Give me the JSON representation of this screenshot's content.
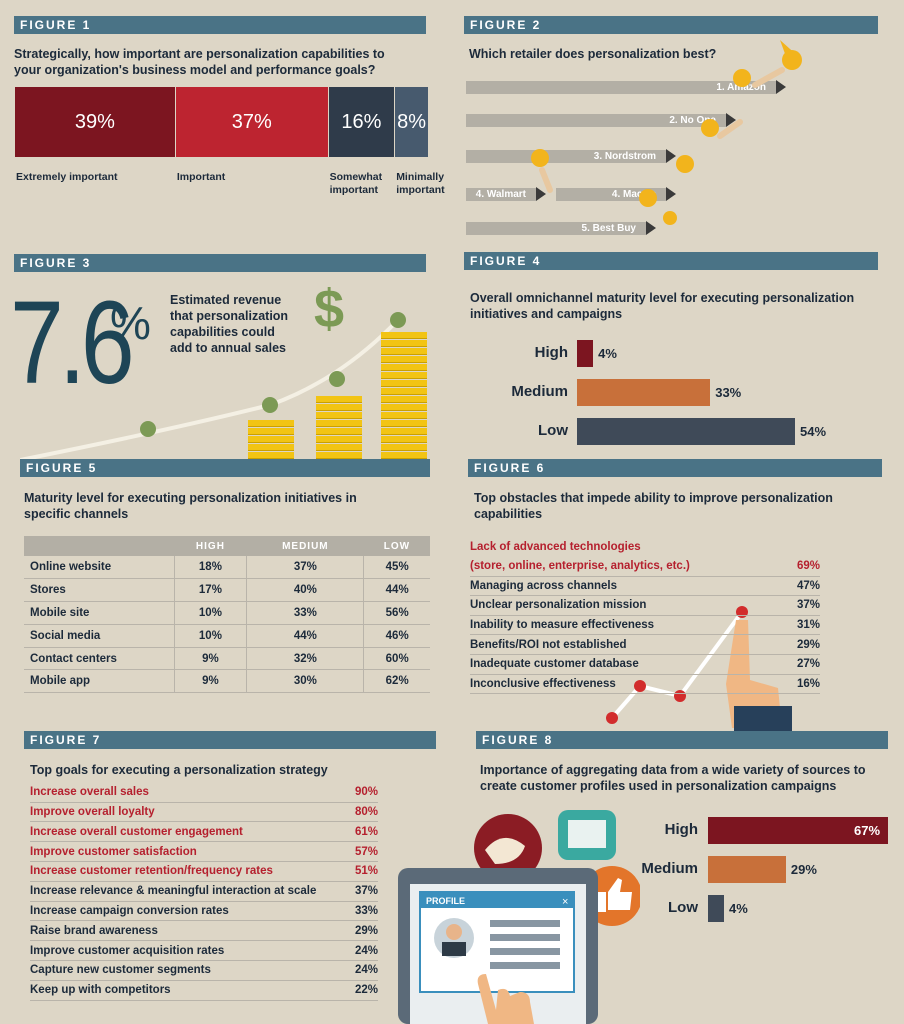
{
  "fig1": {
    "header": "FIGURE 1",
    "question": "Strategically, how important are personalization capabilities to your organization's business model and performance goals?",
    "chart_data": {
      "type": "bar",
      "stacked": true,
      "categories": [
        "Extremely important",
        "Important",
        "Somewhat important",
        "Minimally important"
      ],
      "values": [
        39,
        37,
        16,
        8
      ],
      "value_labels": [
        "39%",
        "37%",
        "16%",
        "8%"
      ],
      "colors": [
        "#7c1520",
        "#bd2430",
        "#2f3b4a",
        "#475a6e"
      ]
    },
    "labels": [
      "Extremely important",
      "Important",
      "Somewhat important",
      "Minimally important"
    ]
  },
  "fig2": {
    "header": "FIGURE 2",
    "question": "Which retailer does personalization best?",
    "ranks": [
      "1. Amazon",
      "2. No One",
      "3. Nordstrom",
      "4. Walmart",
      "4. Macy's",
      "5. Best Buy"
    ]
  },
  "fig3": {
    "header": "FIGURE 3",
    "big_number": "7.6",
    "percent_sign": "%",
    "dollar": "$",
    "caption": "Estimated revenue that personalization capabilities could add to annual sales"
  },
  "fig4": {
    "header": "FIGURE 4",
    "question": "Overall omnichannel maturity level for executing personalization initiatives and  campaigns",
    "chart_data": {
      "type": "bar",
      "orientation": "horizontal",
      "categories": [
        "High",
        "Medium",
        "Low"
      ],
      "values": [
        4,
        33,
        54
      ],
      "value_labels": [
        "4%",
        "33%",
        "54%"
      ],
      "colors": [
        "#7c1520",
        "#c8703a",
        "#3f4a58"
      ]
    }
  },
  "fig5": {
    "header": "FIGURE 5",
    "question": "Maturity level for executing personalization initiatives in specific channels",
    "chart_data": {
      "type": "table",
      "columns": [
        "",
        "HIGH",
        "MEDIUM",
        "LOW"
      ],
      "rows": [
        [
          "Online website",
          "18%",
          "37%",
          "45%"
        ],
        [
          "Stores",
          "17%",
          "40%",
          "44%"
        ],
        [
          "Mobile site",
          "10%",
          "33%",
          "56%"
        ],
        [
          "Social media",
          "10%",
          "44%",
          "46%"
        ],
        [
          "Contact centers",
          "9%",
          "32%",
          "60%"
        ],
        [
          "Mobile app",
          "9%",
          "30%",
          "62%"
        ]
      ]
    }
  },
  "fig6": {
    "header": "FIGURE 6",
    "question": "Top obstacles that impede ability to improve personalization capabilities",
    "first_label_line1": "Lack of advanced technologies",
    "chart_data": {
      "type": "table",
      "rows": [
        {
          "label": "(store, online, enterprise, analytics, etc.)",
          "value": "69%",
          "highlight": true
        },
        {
          "label": "Managing across channels",
          "value": "47%"
        },
        {
          "label": "Unclear personalization mission",
          "value": "37%"
        },
        {
          "label": "Inability to measure effectiveness",
          "value": "31%"
        },
        {
          "label": "Benefits/ROI not established",
          "value": "29%"
        },
        {
          "label": "Inadequate customer database",
          "value": "27%"
        },
        {
          "label": "Inconclusive effectiveness",
          "value": "16%"
        }
      ]
    }
  },
  "fig7": {
    "header": "FIGURE 7",
    "question": "Top goals for executing a personalization strategy",
    "chart_data": {
      "type": "table",
      "rows": [
        {
          "label": "Increase overall sales",
          "value": "90%",
          "highlight": true
        },
        {
          "label": "Improve overall loyalty",
          "value": "80%",
          "highlight": true
        },
        {
          "label": "Increase overall customer engagement",
          "value": "61%",
          "highlight": true
        },
        {
          "label": "Improve customer satisfaction",
          "value": "57%",
          "highlight": true
        },
        {
          "label": "Increase customer retention/frequency rates",
          "value": "51%",
          "highlight": true
        },
        {
          "label": "Increase relevance & meaningful interaction at scale",
          "value": "37%"
        },
        {
          "label": "Increase campaign conversion rates",
          "value": "33%"
        },
        {
          "label": "Raise brand awareness",
          "value": "29%"
        },
        {
          "label": "Improve customer acquisition rates",
          "value": "24%"
        },
        {
          "label": "Capture new customer segments",
          "value": "24%"
        },
        {
          "label": "Keep up with competitors",
          "value": "22%"
        }
      ]
    }
  },
  "fig8": {
    "header": "FIGURE 8",
    "question": "Importance of aggregating data from a wide variety of sources to create customer profiles used in personalization campaigns",
    "profile_title": "PROFILE",
    "close_glyph": "×",
    "chart_data": {
      "type": "bar",
      "orientation": "horizontal",
      "categories": [
        "High",
        "Medium",
        "Low"
      ],
      "values": [
        67,
        29,
        4
      ],
      "value_labels": [
        "67%",
        "29%",
        "4%"
      ],
      "colors": [
        "#7c1520",
        "#c8703a",
        "#3f4a58"
      ]
    }
  }
}
